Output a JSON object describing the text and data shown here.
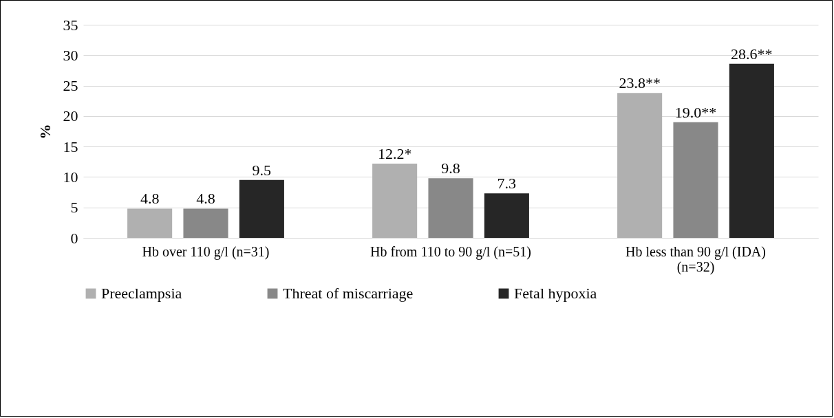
{
  "chart_data": {
    "type": "bar",
    "ylabel": "%",
    "categories": [
      "Hb over 110 g/l (n=31)",
      "Hb from 110 to 90 g/l (n=51)",
      "Hb less than 90 g/l (IDA) (n=32)"
    ],
    "series": [
      {
        "name": "Preeclampsia",
        "color": "#b0b0b0",
        "values": [
          4.8,
          12.2,
          23.8
        ],
        "value_labels": [
          "4.8",
          "12.2*",
          "23.8**"
        ]
      },
      {
        "name": "Threat of miscarriage",
        "color": "#888888",
        "values": [
          4.8,
          9.8,
          19.0
        ],
        "value_labels": [
          "4.8",
          "9.8",
          "19.0**"
        ]
      },
      {
        "name": "Fetal hypoxia",
        "color": "#262626",
        "values": [
          9.5,
          7.3,
          28.6
        ],
        "value_labels": [
          "9.5",
          "7.3",
          "28.6**"
        ]
      }
    ],
    "ylim": [
      0,
      35
    ],
    "yticks": [
      0,
      5,
      10,
      15,
      20,
      25,
      30,
      35
    ],
    "grid": "y",
    "legend": "bottom"
  }
}
